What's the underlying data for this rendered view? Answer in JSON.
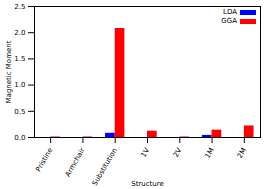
{
  "chart_data": {
    "type": "bar",
    "categories": [
      "Pristine",
      "Armchair",
      "Substitution",
      "1V",
      "2V",
      "1M",
      "2M"
    ],
    "series": [
      {
        "name": "LDA",
        "color": "#0000ff",
        "values": [
          0,
          0,
          0.08,
          0,
          0,
          0.04,
          0
        ]
      },
      {
        "name": "GGA",
        "color": "#ff0000",
        "values": [
          0.01,
          0.01,
          2.08,
          0.12,
          0.01,
          0.14,
          0.22
        ]
      }
    ],
    "x_label": "Structure",
    "y_label": "Magnetic Moment",
    "ylim": [
      0,
      2.5
    ],
    "yticks": [
      0,
      0.5,
      1,
      1.5,
      2,
      2.5
    ],
    "legend": "top-right",
    "grid": false
  }
}
